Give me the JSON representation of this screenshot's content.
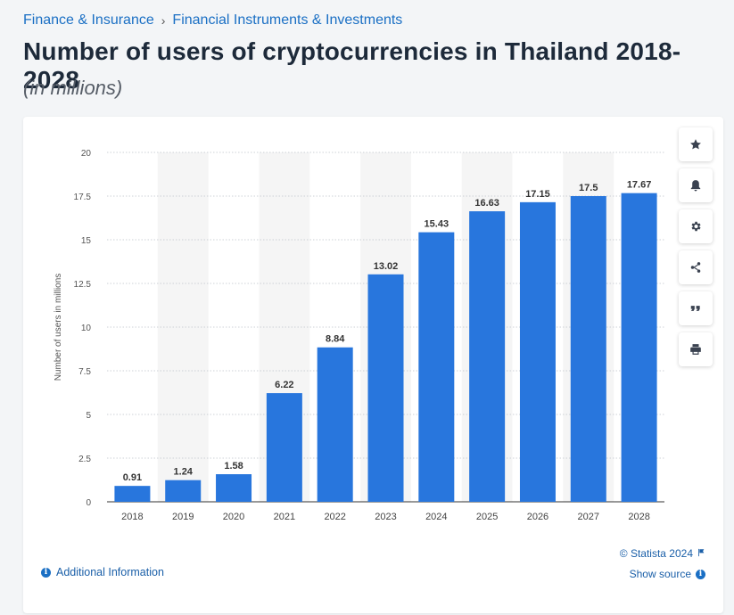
{
  "breadcrumb": {
    "item1": "Finance & Insurance",
    "separator": "›",
    "item2": "Financial Instruments & Investments"
  },
  "header": {
    "title": "Number of users of cryptocurrencies in Thailand 2018-2028",
    "subtitle": "(in millions)"
  },
  "toolbar": {
    "buttons": [
      "star-icon",
      "bell-icon",
      "gear-icon",
      "share-icon",
      "quote-icon",
      "print-icon"
    ]
  },
  "footer": {
    "copyright": "© Statista 2024",
    "show_source": "Show source",
    "additional_info": "Additional Information",
    "info_glyph": "i",
    "flag_icon": "flag-icon"
  },
  "colors": {
    "bar": "#2876dd",
    "accent": "#1a6fc4",
    "band": "#f5f5f5"
  },
  "chart_data": {
    "type": "bar",
    "categories": [
      "2018",
      "2019",
      "2020",
      "2021",
      "2022",
      "2023",
      "2024",
      "2025",
      "2026",
      "2027",
      "2028"
    ],
    "values": [
      0.91,
      1.24,
      1.58,
      6.22,
      8.84,
      13.02,
      15.43,
      16.63,
      17.15,
      17.5,
      17.67
    ],
    "value_labels": [
      "0.91",
      "1.24",
      "1.58",
      "6.22",
      "8.84",
      "13.02",
      "15.43",
      "16.63",
      "17.15",
      "17.5",
      "17.67"
    ],
    "ylabel": "Number of users in millions",
    "xlabel": "",
    "ylim": [
      0,
      20
    ],
    "yticks": [
      "0",
      "2.5",
      "5",
      "7.5",
      "10",
      "12.5",
      "15",
      "17.5",
      "20"
    ],
    "grid": true,
    "legend": "none"
  }
}
